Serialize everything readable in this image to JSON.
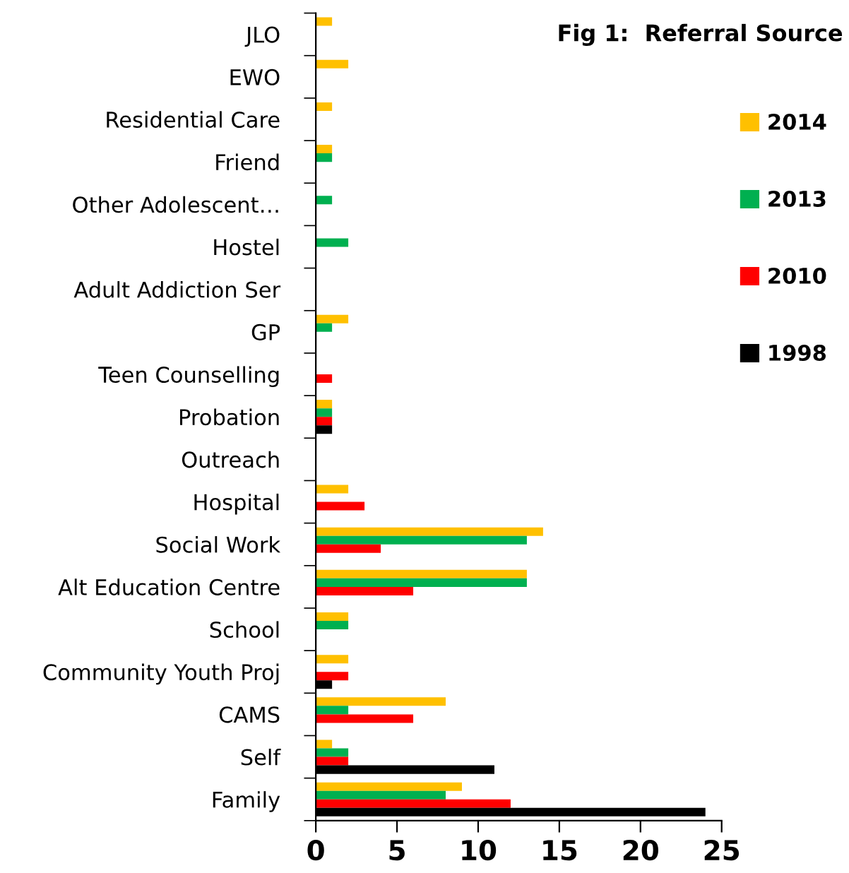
{
  "chart_data": {
    "type": "bar",
    "orientation": "horizontal",
    "title": "Fig 1:  Referral Source",
    "categories": [
      "JLO",
      "EWO",
      "Residential Care",
      "Friend",
      "Other Adolescent…",
      "Hostel",
      "Adult Addiction Ser",
      "GP",
      "Teen Counselling",
      "Probation",
      "Outreach",
      "Hospital",
      "Social Work",
      "Alt Education Centre",
      "School",
      "Community Youth Proj",
      "CAMS",
      "Self",
      "Family"
    ],
    "series": [
      {
        "name": "2014",
        "color": "#ffc000",
        "values": [
          1,
          2,
          1,
          1,
          0,
          0,
          0,
          2,
          0,
          1,
          0,
          2,
          14,
          13,
          2,
          2,
          8,
          1,
          9
        ]
      },
      {
        "name": "2013",
        "color": "#00b050",
        "values": [
          0,
          0,
          0,
          1,
          1,
          2,
          0,
          1,
          0,
          1,
          0,
          0,
          13,
          13,
          2,
          0,
          2,
          2,
          8
        ]
      },
      {
        "name": "2010",
        "color": "#ff0000",
        "values": [
          0,
          0,
          0,
          0,
          0,
          0,
          0,
          0,
          1,
          1,
          0,
          3,
          4,
          6,
          0,
          2,
          6,
          2,
          12
        ]
      },
      {
        "name": "1998",
        "color": "#000000",
        "values": [
          0,
          0,
          0,
          0,
          0,
          0,
          0,
          0,
          0,
          1,
          0,
          0,
          0,
          0,
          0,
          1,
          0,
          11,
          24
        ]
      }
    ],
    "xlim": [
      0,
      25
    ],
    "xticks": [
      0,
      5,
      10,
      15,
      20,
      25
    ],
    "grid": false,
    "legend": "right"
  }
}
